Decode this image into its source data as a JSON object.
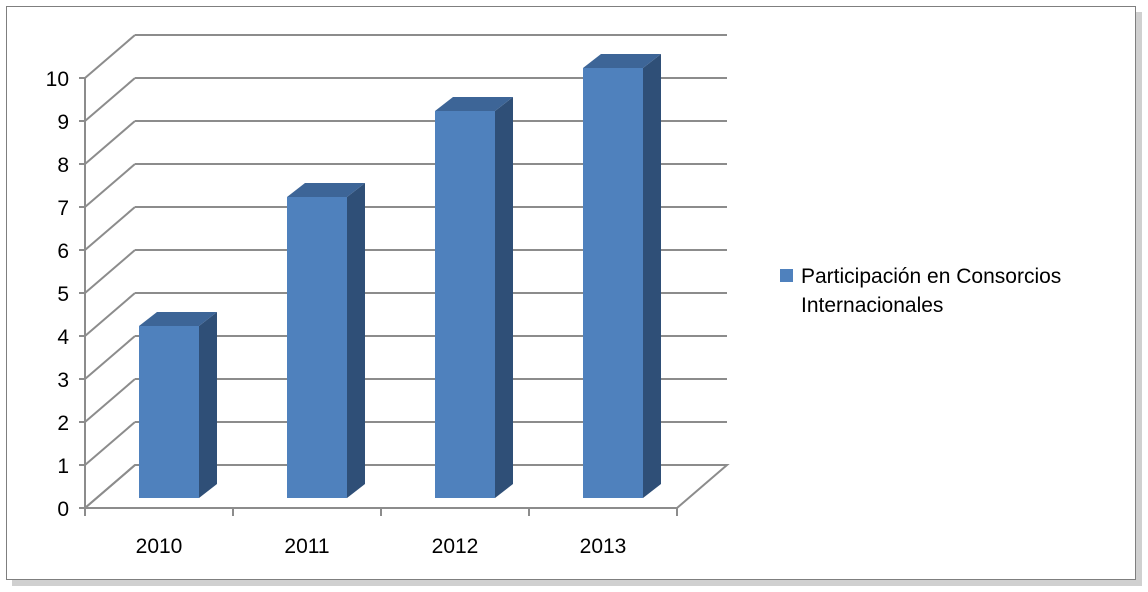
{
  "chart_data": {
    "type": "bar",
    "categories": [
      "2010",
      "2011",
      "2012",
      "2013"
    ],
    "series": [
      {
        "name": "Participación en Consorcios Internacionales",
        "values": [
          4,
          7,
          9,
          10
        ]
      }
    ],
    "title": "",
    "xlabel": "",
    "ylabel": "",
    "ylim": [
      0,
      10
    ],
    "yticks": [
      0,
      1,
      2,
      3,
      4,
      5,
      6,
      7,
      8,
      9,
      10
    ],
    "grid": true,
    "legend_position": "right",
    "style": "3d-column",
    "colors": {
      "bar_front": "#4f81bd",
      "bar_side": "#2f4f77",
      "bar_top": "#3d6597",
      "grid": "#8c8c8c"
    }
  }
}
